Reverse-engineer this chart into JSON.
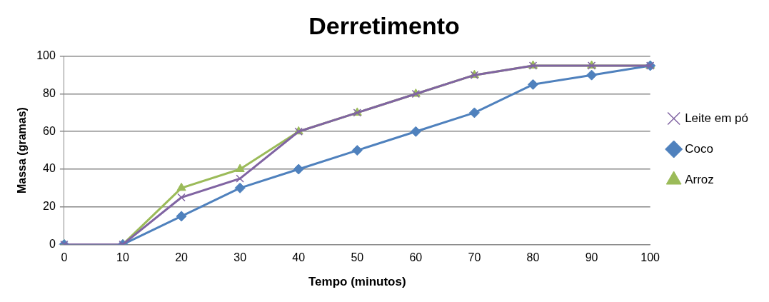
{
  "chart_data": {
    "type": "line",
    "title": "Derretimento",
    "xlabel": "Tempo (minutos)",
    "ylabel": "Massa (gramas)",
    "categories": [
      "0",
      "10",
      "20",
      "30",
      "40",
      "50",
      "60",
      "70",
      "80",
      "90",
      "100"
    ],
    "series": [
      {
        "name": "Arroz",
        "color": "#9bbb59",
        "marker": "triangle",
        "values": [
          0,
          0,
          30,
          40,
          60,
          70,
          80,
          90,
          95,
          95,
          95
        ]
      },
      {
        "name": "Coco",
        "color": "#4f81bd",
        "marker": "diamond",
        "values": [
          0,
          0,
          15,
          30,
          40,
          50,
          60,
          70,
          85,
          90,
          95
        ]
      },
      {
        "name": "Leite em pó",
        "color": "#8064a2",
        "marker": "cross",
        "values": [
          0,
          0,
          25,
          35,
          60,
          70,
          80,
          90,
          95,
          95,
          95
        ]
      }
    ],
    "ylim": [
      0,
      100
    ],
    "yticks": [
      0,
      20,
      40,
      60,
      80,
      100
    ],
    "grid": "y",
    "legend": "right"
  }
}
